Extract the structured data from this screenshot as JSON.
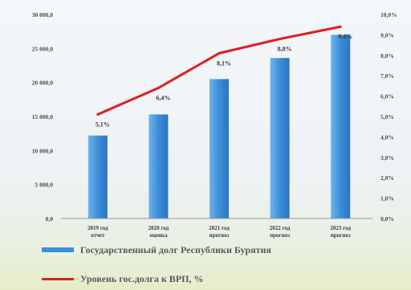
{
  "chart_data": {
    "type": "bar",
    "categories": [
      [
        "2019 год",
        "отчет"
      ],
      [
        "2020 год",
        "оценка"
      ],
      [
        "2021 год",
        "прогноз"
      ],
      [
        "2022 год",
        "прогноз"
      ],
      [
        "2023 год",
        "прогноз"
      ]
    ],
    "series": [
      {
        "name": "Государственный долг Республики Бурятия",
        "kind": "bar",
        "axis": "left",
        "values": [
          12200,
          15300,
          20500,
          23600,
          27000
        ],
        "color": "#3a8fd8"
      },
      {
        "name": "Уровень гос.долга к ВРП, %",
        "kind": "line",
        "axis": "right",
        "values": [
          5.1,
          6.4,
          8.1,
          8.8,
          9.4
        ],
        "labels": [
          "5,1%",
          "6,4%",
          "8,1%",
          "8,8%",
          "9,4%"
        ],
        "color": "#e01e1e"
      }
    ],
    "y_left": {
      "min": 0,
      "max": 30000,
      "ticks": [
        0,
        5000,
        10000,
        15000,
        20000,
        25000,
        30000
      ],
      "tick_labels": [
        "0,0",
        "5 000,0",
        "10 000,0",
        "15 000,0",
        "20 000,0",
        "25 000,0",
        "30 000,0"
      ]
    },
    "y_right": {
      "min": 0,
      "max": 10,
      "ticks": [
        0,
        1,
        2,
        3,
        4,
        5,
        6,
        7,
        8,
        9,
        10
      ],
      "tick_labels": [
        "0,0%",
        "1,0%",
        "2,0%",
        "3,0%",
        "4,0%",
        "5,0%",
        "6,0%",
        "7,0%",
        "8,0%",
        "9,0%",
        "10,0%"
      ]
    },
    "grid": false,
    "legend_position": "bottom"
  },
  "legend": {
    "bar_label": "Государственный долг Республики Бурятия",
    "line_label": "Уровень гос.долга к ВРП, %"
  }
}
